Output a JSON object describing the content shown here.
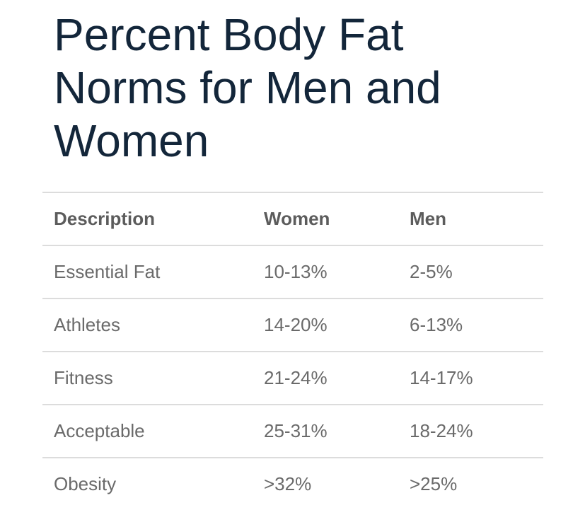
{
  "title": "Percent Body Fat Norms for Men and Women",
  "table": {
    "headers": [
      "Description",
      "Women",
      "Men"
    ],
    "rows": [
      {
        "description": "Essential Fat",
        "women": "10-13%",
        "men": "2-5%"
      },
      {
        "description": "Athletes",
        "women": "14-20%",
        "men": "6-13%"
      },
      {
        "description": "Fitness",
        "women": "21-24%",
        "men": "14-17%"
      },
      {
        "description": "Acceptable",
        "women": "25-31%",
        "men": "18-24%"
      },
      {
        "description": "Obesity",
        "women": ">32%",
        "men": ">25%"
      }
    ]
  },
  "colors": {
    "title": "#13263a",
    "text": "#666666",
    "border": "#dcdcdc",
    "background": "#ffffff"
  }
}
